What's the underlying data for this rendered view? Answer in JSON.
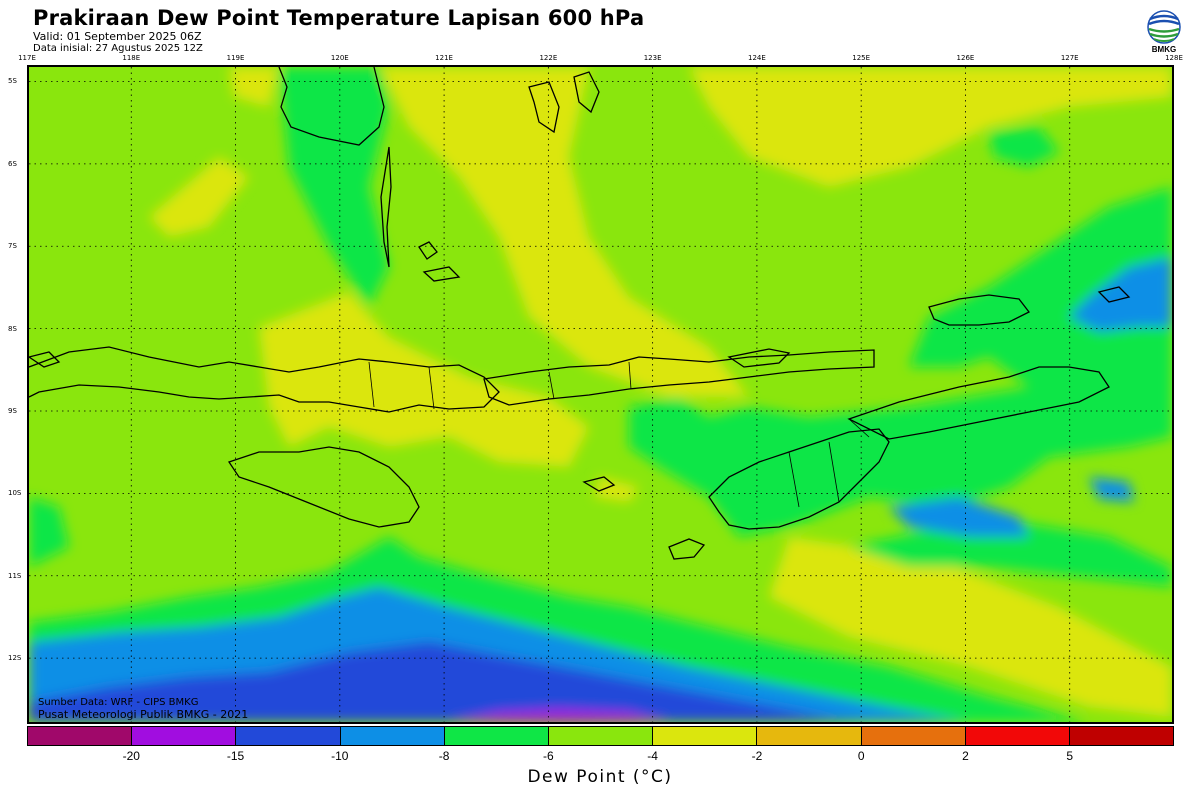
{
  "header": {
    "title": "Prakiraan Dew Point Temperature Lapisan 600 hPa",
    "valid": "Valid: 01 September 2025 06Z",
    "init": "Data inisial: 27 Agustus 2025 12Z",
    "logo_text": "BMKG"
  },
  "map": {
    "lon_labels": [
      "117E",
      "118E",
      "119E",
      "120E",
      "121E",
      "122E",
      "123E",
      "124E",
      "125E",
      "126E",
      "127E",
      "128E"
    ],
    "lat_labels": [
      "5S",
      "6S",
      "7S",
      "8S",
      "9S",
      "10S",
      "11S",
      "12S"
    ],
    "lon_range": [
      117,
      128
    ],
    "lat_range": [
      -4.8,
      -12.8
    ],
    "grid_style": "dotted",
    "source_line1": "Sumber Data: WRF - CIPS BMKG",
    "source_line2": "Pusat Meteorologi Publik BMKG - 2021"
  },
  "colorbar": {
    "title": "Dew Point (°C)",
    "colors": [
      "#a0086a",
      "#a10de0",
      "#2249d9",
      "#0d8fe6",
      "#0fe646",
      "#8ae60d",
      "#dbe60d",
      "#e6b80d",
      "#e6700d",
      "#f20808",
      "#bf0000"
    ],
    "tick_labels": [
      "-20",
      "-15",
      "-10",
      "-8",
      "-6",
      "-4",
      "-2",
      "0",
      "2",
      "5"
    ]
  }
}
